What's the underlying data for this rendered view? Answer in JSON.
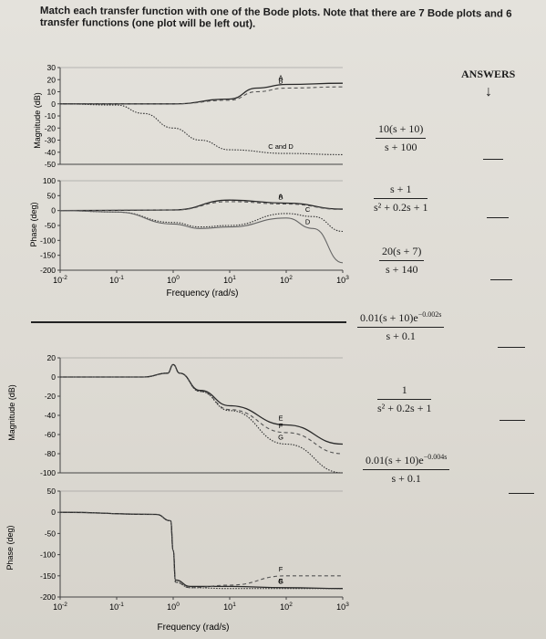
{
  "question": "Match each transfer function with one of the Bode plots. Note that there are 7 Bode plots and 6 transfer functions (one plot will be left out).",
  "answers_header": "ANSWERS",
  "answers_arrow": "↓",
  "transfer_functions": [
    {
      "num": "10(s + 10)",
      "den": "s + 100",
      "blank": ""
    },
    {
      "num": "s + 1",
      "den": "s² + 0.2s + 1",
      "blank": ""
    },
    {
      "num": "20(s + 7)",
      "den": "s + 140",
      "blank": ""
    },
    {
      "num": "0.01(s + 10)e",
      "num_exp": "−0.002s",
      "den": "s + 0.1",
      "blank": ""
    },
    {
      "num": "1",
      "den": "s² + 0.2s + 1",
      "blank": ""
    },
    {
      "num": "0.01(s + 10)e",
      "num_exp": "−0.004s",
      "den": "s + 0.1",
      "blank": ""
    }
  ],
  "chart_data": [
    {
      "type": "line",
      "title": "",
      "panel": "top",
      "xlabel": "Frequency (rad/s)",
      "xscale": "log",
      "xlim": [
        0.01,
        1000
      ],
      "xticks": [
        "10^-2",
        "10^-1",
        "10^0",
        "10^1",
        "10^2",
        "10^3"
      ],
      "magnitude": {
        "ylabel": "Magnitude (dB)",
        "ylim": [
          -50,
          30
        ],
        "yticks": [
          "30",
          "20",
          "10",
          "0",
          "-10",
          "-20",
          "-30",
          "-40",
          "-50"
        ],
        "series": [
          {
            "name": "A",
            "x": [
              0.01,
              1,
              10,
              30,
              100,
              1000
            ],
            "y": [
              0,
              0,
              4,
              13,
              16,
              17
            ]
          },
          {
            "name": "B",
            "x": [
              0.01,
              1,
              10,
              30,
              100,
              1000
            ],
            "y": [
              0,
              0,
              3,
              10,
              13,
              14
            ]
          },
          {
            "name": "C and D",
            "x": [
              0.01,
              0.1,
              0.3,
              1,
              3,
              10,
              100,
              1000
            ],
            "y": [
              0,
              -1,
              -8,
              -20,
              -30,
              -38,
              -41,
              -42
            ]
          }
        ]
      },
      "phase": {
        "ylabel": "Phase (deg)",
        "ylim": [
          -200,
          100
        ],
        "yticks": [
          "100",
          "50",
          "0",
          "-50",
          "-100",
          "-150",
          "-200"
        ],
        "series": [
          {
            "name": "A",
            "x": [
              0.01,
              1,
              10,
              100,
              1000
            ],
            "y": [
              0,
              2,
              35,
              25,
              5
            ]
          },
          {
            "name": "B",
            "x": [
              0.01,
              1,
              10,
              100,
              1000
            ],
            "y": [
              0,
              2,
              30,
              22,
              4
            ]
          },
          {
            "name": "C",
            "x": [
              0.01,
              0.1,
              1,
              3,
              10,
              100,
              300,
              1000
            ],
            "y": [
              0,
              -5,
              -40,
              -55,
              -50,
              -10,
              -20,
              -70
            ]
          },
          {
            "name": "D",
            "x": [
              0.01,
              0.1,
              1,
              3,
              10,
              100,
              300,
              1000
            ],
            "y": [
              0,
              -5,
              -45,
              -60,
              -55,
              -25,
              -60,
              -175
            ]
          }
        ]
      },
      "annotations": [
        "A",
        "B",
        "C and D",
        "A",
        "B",
        "C",
        "D"
      ]
    },
    {
      "type": "line",
      "title": "",
      "panel": "bottom",
      "xlabel": "Frequency (rad/s)",
      "xscale": "log",
      "xlim": [
        0.01,
        1000
      ],
      "xticks": [
        "10^-2",
        "10^-1",
        "10^0",
        "10^1",
        "10^2",
        "10^3"
      ],
      "magnitude": {
        "ylabel": "Magnitude (dB)",
        "ylim": [
          -100,
          20
        ],
        "yticks": [
          "20",
          "0",
          "-20",
          "-40",
          "-60",
          "-80",
          "-100"
        ],
        "series": [
          {
            "name": "E",
            "x": [
              0.01,
              0.3,
              0.8,
              1,
              1.3,
              3,
              10,
              100,
              1000
            ],
            "y": [
              0,
              0,
              4,
              13,
              4,
              -14,
              -30,
              -50,
              -70
            ]
          },
          {
            "name": "F",
            "x": [
              0.01,
              0.3,
              0.8,
              1,
              1.3,
              3,
              10,
              100,
              1000
            ],
            "y": [
              0,
              0,
              4,
              13,
              4,
              -15,
              -34,
              -58,
              -80
            ]
          },
          {
            "name": "G",
            "x": [
              0.01,
              0.3,
              0.8,
              1,
              1.3,
              3,
              10,
              100,
              1000
            ],
            "y": [
              0,
              0,
              4,
              13,
              4,
              -15,
              -35,
              -70,
              -100
            ]
          }
        ]
      },
      "phase": {
        "ylabel": "Phase (deg)",
        "ylim": [
          -200,
          50
        ],
        "yticks": [
          "50",
          "0",
          "-50",
          "-100",
          "-150",
          "-200"
        ],
        "series": [
          {
            "name": "E",
            "x": [
              0.01,
              0.5,
              0.9,
              1,
              1.1,
              2,
              10,
              100,
              1000
            ],
            "y": [
              0,
              -5,
              -20,
              -90,
              -160,
              -175,
              -175,
              -178,
              -180
            ]
          },
          {
            "name": "F",
            "x": [
              0.01,
              0.5,
              0.9,
              1,
              1.1,
              2,
              10,
              100,
              1000
            ],
            "y": [
              0,
              -5,
              -20,
              -90,
              -165,
              -178,
              -172,
              -150,
              -150
            ]
          },
          {
            "name": "G",
            "x": [
              0.01,
              0.5,
              0.9,
              1,
              1.1,
              2,
              10,
              100,
              1000
            ],
            "y": [
              0,
              -5,
              -20,
              -90,
              -165,
              -178,
              -180,
              -180,
              -180
            ]
          }
        ]
      },
      "annotations": [
        "E",
        "F",
        "G",
        "E",
        "F",
        "G"
      ]
    }
  ]
}
